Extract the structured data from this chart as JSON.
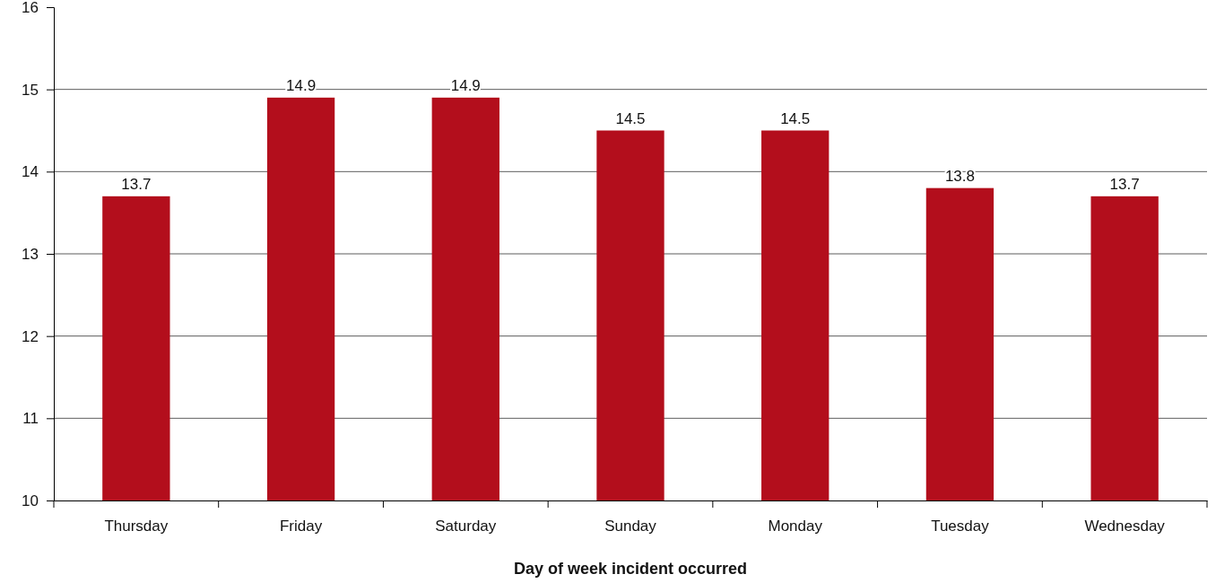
{
  "chart_data": {
    "type": "bar",
    "xlabel": "Day of week incident occurred",
    "categories": [
      "Thursday",
      "Friday",
      "Saturday",
      "Sunday",
      "Monday",
      "Tuesday",
      "Wednesday"
    ],
    "values": [
      13.7,
      14.9,
      14.9,
      14.5,
      14.5,
      13.8,
      13.7
    ],
    "color": "#b30e1c",
    "ylim": [
      10,
      16
    ],
    "yticks": [
      10,
      11,
      12,
      13,
      14,
      15,
      16
    ],
    "grid": "y",
    "data_labels": true
  }
}
